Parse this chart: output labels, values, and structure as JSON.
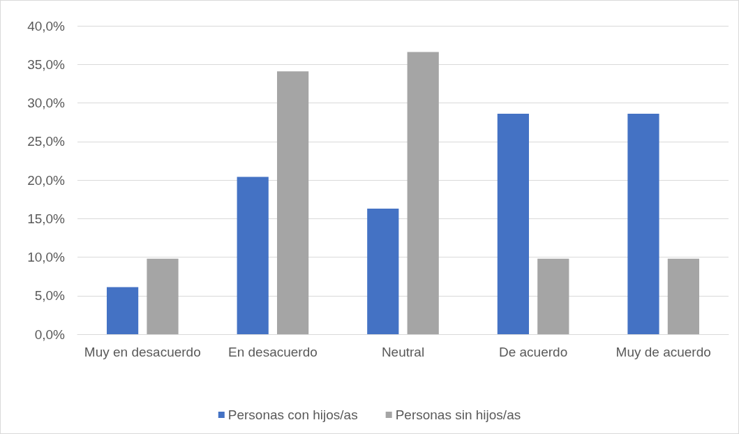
{
  "chart_data": {
    "type": "bar",
    "categories": [
      "Muy en desacuerdo",
      "En desacuerdo",
      "Neutral",
      "De acuerdo",
      "Muy de acuerdo"
    ],
    "series": [
      {
        "name": "Personas con hijos/as",
        "color": "#4472c4",
        "values": [
          6.1,
          20.4,
          16.3,
          28.6,
          28.6
        ]
      },
      {
        "name": "Personas sin hijos/as",
        "color": "#a5a5a5",
        "values": [
          9.8,
          34.1,
          36.6,
          9.8,
          9.8
        ]
      }
    ],
    "ylim": [
      0,
      40
    ],
    "yticks": [
      {
        "value": 0,
        "label": "0,0%"
      },
      {
        "value": 5,
        "label": "5,0%"
      },
      {
        "value": 10,
        "label": "10,0%"
      },
      {
        "value": 15,
        "label": "15,0%"
      },
      {
        "value": 20,
        "label": "20,0%"
      },
      {
        "value": 25,
        "label": "25,0%"
      },
      {
        "value": 30,
        "label": "30,0%"
      },
      {
        "value": 35,
        "label": "35,0%"
      },
      {
        "value": 40,
        "label": "40,0%"
      }
    ],
    "grid": "y",
    "legend": "bottom"
  }
}
